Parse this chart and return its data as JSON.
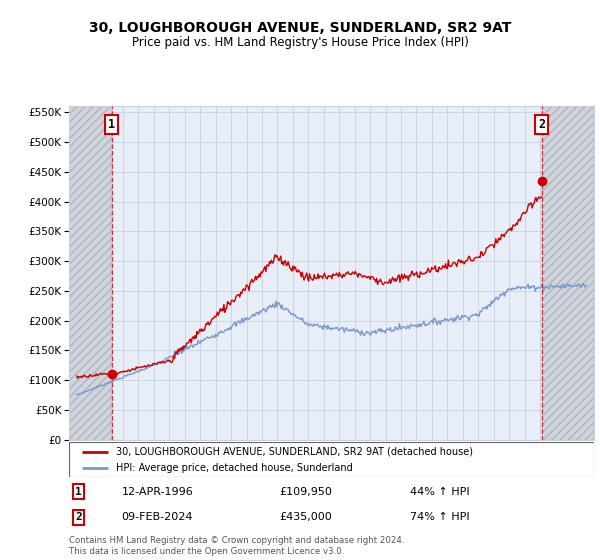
{
  "title_line1": "30, LOUGHBOROUGH AVENUE, SUNDERLAND, SR2 9AT",
  "title_line2": "Price paid vs. HM Land Registry's House Price Index (HPI)",
  "legend_label_red": "30, LOUGHBOROUGH AVENUE, SUNDERLAND, SR2 9AT (detached house)",
  "legend_label_blue": "HPI: Average price, detached house, Sunderland",
  "point1_date": "12-APR-1996",
  "point1_price": "£109,950",
  "point1_hpi": "44% ↑ HPI",
  "point2_date": "09-FEB-2024",
  "point2_price": "£435,000",
  "point2_hpi": "74% ↑ HPI",
  "footer": "Contains HM Land Registry data © Crown copyright and database right 2024.\nThis data is licensed under the Open Government Licence v3.0.",
  "ylim": [
    0,
    560000
  ],
  "yticks": [
    0,
    50000,
    100000,
    150000,
    200000,
    250000,
    300000,
    350000,
    400000,
    450000,
    500000,
    550000
  ],
  "bg_color_light": "#e8eef8",
  "grid_color": "#c8d0e0",
  "red_line_color": "#cc0000",
  "blue_line_color": "#7799cc",
  "point1_x": 1996.28,
  "point1_y": 109950,
  "point2_x": 2024.1,
  "point2_y": 435000,
  "xlim_left": 1993.5,
  "xlim_right": 2027.5,
  "hatch_left_end": 1996.28,
  "hatch_right_start": 2024.1
}
